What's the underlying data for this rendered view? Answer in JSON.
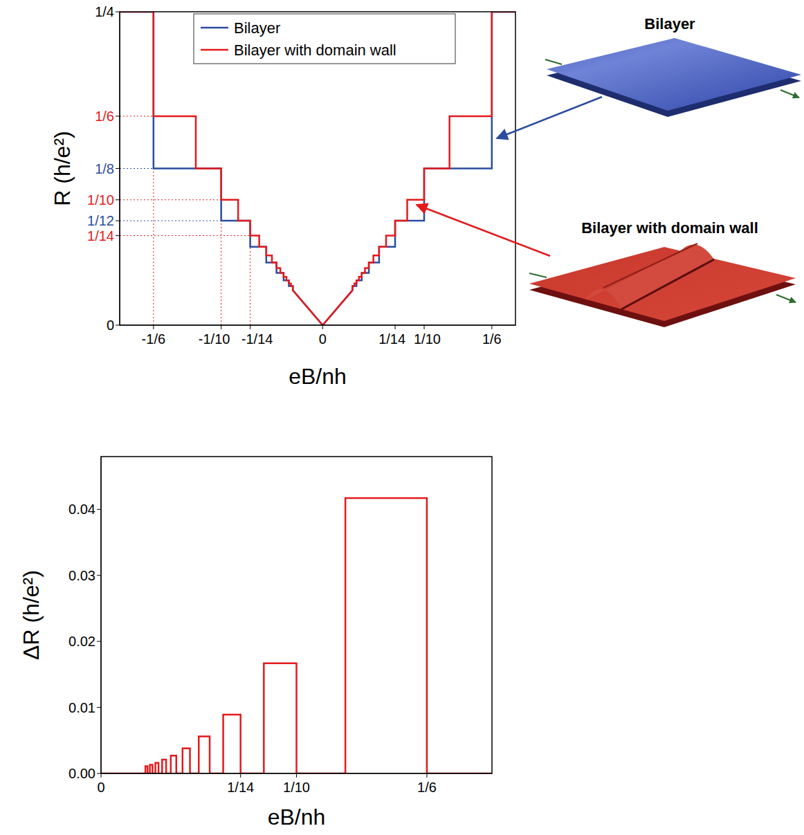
{
  "chart_data": [
    {
      "type": "line",
      "x_label": "eB/nh",
      "y_label": "R (h/e²)",
      "legend": "upper center",
      "xlim": [
        -0.2,
        0.19
      ],
      "ylim": [
        0,
        0.25
      ],
      "xticks": [
        {
          "value": -0.1667,
          "label": "-1/6"
        },
        {
          "value": -0.1,
          "label": "-1/10"
        },
        {
          "value": -0.0714,
          "label": "-1/14"
        },
        0,
        {
          "value": 0.0714,
          "label": "1/14"
        },
        {
          "value": 0.1,
          "label": "1/10"
        },
        {
          "value": 0.1667,
          "label": "1/6"
        }
      ],
      "yticks": [
        0,
        {
          "value": 0.0714,
          "label": "1/14",
          "color": "#e41a1c"
        },
        {
          "value": 0.0833,
          "label": "1/12",
          "color": "#2b4c9e"
        },
        {
          "value": 0.1,
          "label": "1/10",
          "color": "#e41a1c"
        },
        {
          "value": 0.125,
          "label": "1/8",
          "color": "#2b4c9e"
        },
        {
          "value": 0.1667,
          "label": "1/6",
          "color": "#e41a1c"
        },
        {
          "value": 0.25,
          "label": "1/4"
        }
      ],
      "series": [
        {
          "name": "Bilayer",
          "color": "#2b4c9e",
          "x": [
            -0.2,
            -0.1667,
            -0.1667,
            -0.1,
            -0.1,
            -0.0714,
            -0.0714,
            -0.0556,
            -0.0556,
            -0.0455,
            -0.0455,
            -0.0385,
            -0.0385,
            -0.0333,
            -0.0333,
            -0.0294,
            -0.0294,
            0,
            0.0294,
            0.0294,
            0.0333,
            0.0333,
            0.0385,
            0.0385,
            0.0455,
            0.0455,
            0.0556,
            0.0556,
            0.0714,
            0.0714,
            0.1,
            0.1,
            0.1667,
            0.1667,
            0.19
          ],
          "values": [
            0.25,
            0.25,
            0.125,
            0.125,
            0.0833,
            0.0833,
            0.0625,
            0.0625,
            0.05,
            0.05,
            0.0417,
            0.0417,
            0.0357,
            0.0357,
            0.03125,
            0.03125,
            0.0278,
            0,
            0.0278,
            0.03125,
            0.03125,
            0.0357,
            0.0357,
            0.0417,
            0.0417,
            0.05,
            0.05,
            0.0625,
            0.0625,
            0.0833,
            0.0833,
            0.125,
            0.125,
            0.25,
            0.25
          ]
        },
        {
          "name": "Bilayer with domain wall",
          "color": "#e41a1c",
          "x": [
            -0.2,
            -0.1667,
            -0.1667,
            -0.125,
            -0.125,
            -0.1,
            -0.1,
            -0.0833,
            -0.0833,
            -0.0714,
            -0.0714,
            -0.0625,
            -0.0625,
            -0.0556,
            -0.0556,
            -0.05,
            -0.05,
            -0.0455,
            -0.0455,
            -0.0417,
            -0.0417,
            -0.0385,
            -0.0385,
            -0.0357,
            -0.0357,
            -0.0333,
            -0.0333,
            -0.03125,
            -0.03125,
            -0.0294,
            -0.0294,
            0,
            0.0294,
            0.0294,
            0.03125,
            0.03125,
            0.0333,
            0.0333,
            0.0357,
            0.0357,
            0.0385,
            0.0385,
            0.0417,
            0.0417,
            0.0455,
            0.0455,
            0.05,
            0.05,
            0.0556,
            0.0556,
            0.0625,
            0.0625,
            0.0714,
            0.0714,
            0.0833,
            0.0833,
            0.1,
            0.1,
            0.125,
            0.125,
            0.1667,
            0.1667,
            0.19
          ],
          "values": [
            0.25,
            0.25,
            0.1667,
            0.1667,
            0.125,
            0.125,
            0.1,
            0.1,
            0.0833,
            0.0833,
            0.0714,
            0.0714,
            0.0625,
            0.0625,
            0.0556,
            0.0556,
            0.05,
            0.05,
            0.0455,
            0.0455,
            0.0417,
            0.0417,
            0.0385,
            0.0385,
            0.0357,
            0.0357,
            0.0333,
            0.0333,
            0.03125,
            0.03125,
            0.0278,
            0,
            0.0278,
            0.03125,
            0.03125,
            0.0333,
            0.0333,
            0.0357,
            0.0357,
            0.0385,
            0.0385,
            0.0417,
            0.0417,
            0.0455,
            0.0455,
            0.05,
            0.05,
            0.0556,
            0.0556,
            0.0625,
            0.0625,
            0.0714,
            0.0714,
            0.0833,
            0.0833,
            0.1,
            0.1,
            0.125,
            0.125,
            0.1667,
            0.1667,
            0.25,
            0.25
          ]
        }
      ]
    },
    {
      "type": "line",
      "x_label": "eB/nh",
      "y_label": "ΔR (h/e²)",
      "xlim": [
        0,
        0.2
      ],
      "ylim": [
        0,
        0.048
      ],
      "xticks": [
        0,
        {
          "value": 0.0714,
          "label": "1/14"
        },
        {
          "value": 0.1,
          "label": "1/10"
        },
        {
          "value": 0.1667,
          "label": "1/6"
        }
      ],
      "yticks": [
        {
          "value": 0,
          "label": "0.00"
        },
        {
          "value": 0.01,
          "label": "0.01"
        },
        {
          "value": 0.02,
          "label": "0.02"
        },
        {
          "value": 0.03,
          "label": "0.03"
        },
        {
          "value": 0.04,
          "label": "0.04"
        }
      ],
      "series": [
        {
          "color": "#e41a1c",
          "x": [
            0,
            0.0227,
            0.0227,
            0.0238,
            0.0238,
            0.025,
            0.025,
            0.0263,
            0.0263,
            0.0278,
            0.0278,
            0.0294,
            0.0294,
            0.03125,
            0.03125,
            0.0333,
            0.0333,
            0.0357,
            0.0357,
            0.0385,
            0.0385,
            0.0417,
            0.0417,
            0.0455,
            0.0455,
            0.05,
            0.05,
            0.0556,
            0.0556,
            0.0625,
            0.0625,
            0.0714,
            0.0714,
            0.0833,
            0.0833,
            0.1,
            0.1,
            0.125,
            0.125,
            0.1667,
            0.1667,
            0.2
          ],
          "values": [
            0,
            0,
            0.0011,
            0.0011,
            0,
            0,
            0.0013,
            0.0013,
            0,
            0,
            0.0016,
            0.0016,
            0,
            0,
            0.0021,
            0.0021,
            0,
            0,
            0.0027,
            0.0027,
            0,
            0,
            0.0038,
            0.0038,
            0,
            0,
            0.0056,
            0.0056,
            0,
            0,
            0.0089,
            0.0089,
            0,
            0,
            0.0167,
            0.0167,
            0,
            0,
            0.0417,
            0.0417,
            0,
            0
          ]
        }
      ]
    }
  ],
  "illustrations": [
    {
      "label": "Bilayer"
    },
    {
      "label": "Bilayer with domain wall"
    }
  ]
}
